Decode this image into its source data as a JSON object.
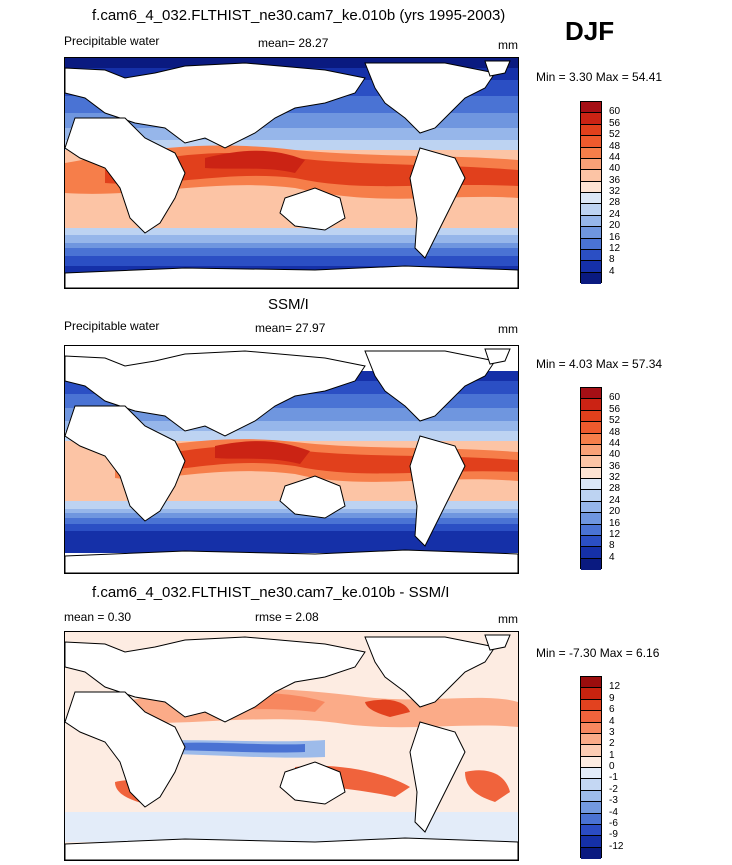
{
  "season": "DJF",
  "panels": [
    {
      "title": "f.cam6_4_032.FLTHIST_ne30.cam7_ke.010b (yrs 1995-2003)",
      "variable": "Precipitable water",
      "stat1": "mean=  28.27",
      "stat2": "",
      "units": "mm",
      "minmax": "Min =   3.30 Max =  54.41",
      "levels": [
        "60",
        "56",
        "52",
        "48",
        "44",
        "40",
        "36",
        "32",
        "28",
        "24",
        "20",
        "16",
        "12",
        "8",
        "4"
      ],
      "colors": [
        "#a50f15",
        "#cb2314",
        "#e1401c",
        "#ee5a2d",
        "#f67e4a",
        "#f9a177",
        "#fcc4a5",
        "#fde3d3",
        "#dbe7f7",
        "#bdd3f2",
        "#96b6ea",
        "#6f96df",
        "#4a73d4",
        "#2b4fc4",
        "#1530a8",
        "#0a1a80"
      ]
    },
    {
      "title": "SSM/I",
      "variable": "Precipitable water",
      "stat1": "mean=  27.97",
      "stat2": "",
      "units": "mm",
      "minmax": "Min =   4.03 Max =  57.34",
      "levels": [
        "60",
        "56",
        "52",
        "48",
        "44",
        "40",
        "36",
        "32",
        "28",
        "24",
        "20",
        "16",
        "12",
        "8",
        "4"
      ],
      "colors": [
        "#a50f15",
        "#cb2314",
        "#e1401c",
        "#ee5a2d",
        "#f67e4a",
        "#f9a177",
        "#fcc4a5",
        "#fde3d3",
        "#dbe7f7",
        "#bdd3f2",
        "#96b6ea",
        "#6f96df",
        "#4a73d4",
        "#2b4fc4",
        "#1530a8",
        "#0a1a80"
      ]
    },
    {
      "title": "f.cam6_4_032.FLTHIST_ne30.cam7_ke.010b - SSM/I",
      "variable": "",
      "stat1": "mean =   0.30",
      "stat2": "rmse =   2.08",
      "units": "mm",
      "minmax": "Min =  -7.30 Max =   6.16",
      "levels": [
        "12",
        "9",
        "6",
        "4",
        "3",
        "2",
        "1",
        "0",
        "-1",
        "-2",
        "-3",
        "-4",
        "-6",
        "-9",
        "-12"
      ],
      "colors": [
        "#9b0d0d",
        "#c8230f",
        "#e2421f",
        "#f0633c",
        "#f7875f",
        "#fbab88",
        "#fdcdb4",
        "#fdece2",
        "#e3ecf9",
        "#c4d7f3",
        "#9dbbea",
        "#7399df",
        "#4a72d3",
        "#2b4cc4",
        "#1530a8",
        "#0a1a80"
      ]
    }
  ]
}
